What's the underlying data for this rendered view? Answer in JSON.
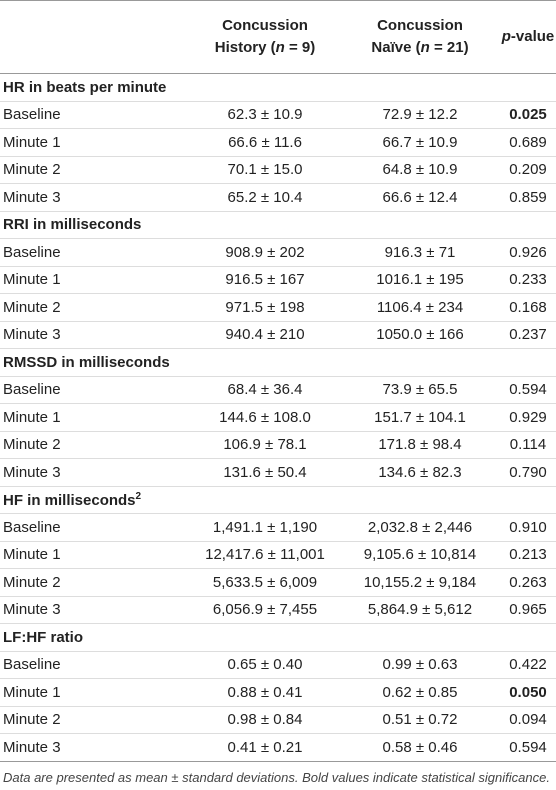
{
  "header": {
    "col1": {
      "line1": "Concussion",
      "line2": [
        "History (",
        "n",
        " = 9)"
      ]
    },
    "col2": {
      "line1": "Concussion",
      "line2": [
        "Naïve (",
        "n",
        " = 21)"
      ]
    },
    "col3": [
      "p",
      "-value"
    ]
  },
  "sections": [
    {
      "title": "HR in beats per minute",
      "bold_rows": [
        0
      ],
      "rows": [
        [
          "Baseline",
          "62.3 ± 10.9",
          "72.9 ± 12.2",
          "0.025"
        ],
        [
          "Minute 1",
          "66.6 ± 11.6",
          "66.7 ± 10.9",
          "0.689"
        ],
        [
          "Minute 2",
          "70.1 ± 15.0",
          "64.8 ± 10.9",
          "0.209"
        ],
        [
          "Minute 3",
          "65.2 ± 10.4",
          "66.6 ± 12.4",
          "0.859"
        ]
      ]
    },
    {
      "title": "RRI in milliseconds",
      "bold_rows": [],
      "rows": [
        [
          "Baseline",
          "908.9 ± 202",
          "916.3 ± 71",
          "0.926"
        ],
        [
          "Minute 1",
          "916.5 ± 167",
          "1016.1 ± 195",
          "0.233"
        ],
        [
          "Minute 2",
          "971.5 ± 198",
          "1106.4 ± 234",
          "0.168"
        ],
        [
          "Minute 3",
          "940.4 ± 210",
          "1050.0 ± 166",
          "0.237"
        ]
      ]
    },
    {
      "title": "RMSSD in milliseconds",
      "bold_rows": [],
      "rows": [
        [
          "Baseline",
          "68.4 ± 36.4",
          "73.9 ± 65.5",
          "0.594"
        ],
        [
          "Minute 1",
          "144.6 ± 108.0",
          "151.7 ± 104.1",
          "0.929"
        ],
        [
          "Minute 2",
          "106.9 ± 78.1",
          "171.8 ± 98.4",
          "0.114"
        ],
        [
          "Minute 3",
          "131.6 ± 50.4",
          "134.6 ± 82.3",
          "0.790"
        ]
      ]
    },
    {
      "title": "HF in milliseconds",
      "title_sup": "2",
      "bold_rows": [],
      "rows": [
        [
          "Baseline",
          "1,491.1 ± 1,190",
          "2,032.8 ± 2,446",
          "0.910"
        ],
        [
          "Minute 1",
          "12,417.6 ± 11,001",
          "9,105.6 ± 10,814",
          "0.213"
        ],
        [
          "Minute 2",
          "5,633.5 ± 6,009",
          "10,155.2 ± 9,184",
          "0.263"
        ],
        [
          "Minute 3",
          "6,056.9 ± 7,455",
          "5,864.9 ± 5,612",
          "0.965"
        ]
      ]
    },
    {
      "title": "LF:HF ratio",
      "bold_rows": [
        1
      ],
      "rows": [
        [
          "Baseline",
          "0.65 ± 0.40",
          "0.99 ± 0.63",
          "0.422"
        ],
        [
          "Minute 1",
          "0.88 ± 0.41",
          "0.62 ± 0.85",
          "0.050"
        ],
        [
          "Minute 2",
          "0.98 ± 0.84",
          "0.51 ± 0.72",
          "0.094"
        ],
        [
          "Minute 3",
          "0.41 ± 0.21",
          "0.58 ± 0.46",
          "0.594"
        ]
      ]
    }
  ],
  "footnote": "Data are presented as mean ± standard deviations. Bold values indicate statistical significance."
}
